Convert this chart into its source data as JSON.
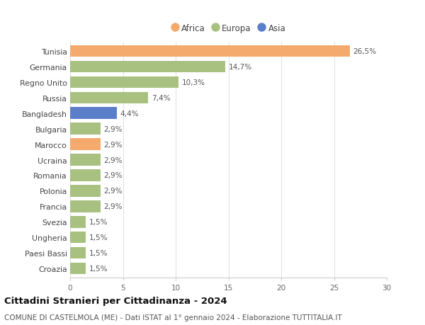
{
  "countries": [
    "Tunisia",
    "Germania",
    "Regno Unito",
    "Russia",
    "Bangladesh",
    "Bulgaria",
    "Marocco",
    "Ucraina",
    "Romania",
    "Polonia",
    "Francia",
    "Svezia",
    "Ungheria",
    "Paesi Bassi",
    "Croazia"
  ],
  "values": [
    26.5,
    14.7,
    10.3,
    7.4,
    4.4,
    2.9,
    2.9,
    2.9,
    2.9,
    2.9,
    2.9,
    1.5,
    1.5,
    1.5,
    1.5
  ],
  "labels": [
    "26,5%",
    "14,7%",
    "10,3%",
    "7,4%",
    "4,4%",
    "2,9%",
    "2,9%",
    "2,9%",
    "2,9%",
    "2,9%",
    "2,9%",
    "1,5%",
    "1,5%",
    "1,5%",
    "1,5%"
  ],
  "continents": [
    "Africa",
    "Europa",
    "Europa",
    "Europa",
    "Asia",
    "Europa",
    "Africa",
    "Europa",
    "Europa",
    "Europa",
    "Europa",
    "Europa",
    "Europa",
    "Europa",
    "Europa"
  ],
  "colors": {
    "Africa": "#F4A96D",
    "Europa": "#A8C080",
    "Asia": "#5B7EC9"
  },
  "legend_order": [
    "Africa",
    "Europa",
    "Asia"
  ],
  "xlim": [
    0,
    30
  ],
  "xticks": [
    0,
    5,
    10,
    15,
    20,
    25,
    30
  ],
  "title": "Cittadini Stranieri per Cittadinanza - 2024",
  "subtitle": "COMUNE DI CASTELMOLA (ME) - Dati ISTAT al 1° gennaio 2024 - Elaborazione TUTTITALIA.IT",
  "title_fontsize": 9.5,
  "subtitle_fontsize": 7.5,
  "background_color": "#ffffff",
  "bar_height": 0.75,
  "label_fontsize": 7.5,
  "ytick_fontsize": 7.8,
  "xtick_fontsize": 7.5
}
